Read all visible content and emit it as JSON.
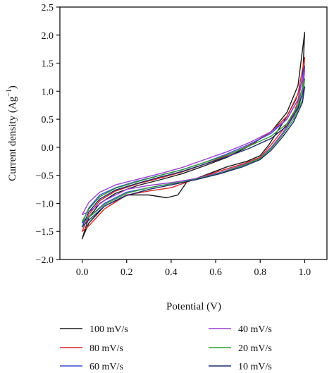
{
  "chart_data": {
    "type": "line",
    "xlabel": "Potential (V)",
    "ylabel": "Current density (Ag",
    "ylabel_sup": "−1",
    "ylabel_close": ")",
    "xlim": [
      -0.1,
      1.1
    ],
    "ylim": [
      -2.0,
      2.5
    ],
    "xticks": [
      "0.0",
      "0.2",
      "0.4",
      "0.6",
      "0.8",
      "1.0"
    ],
    "xtick_values": [
      0.0,
      0.2,
      0.4,
      0.6,
      0.8,
      1.0
    ],
    "yticks": [
      "−2.0",
      "−1.5",
      "−1.0",
      "−0.5",
      "0.0",
      "0.5",
      "1.0",
      "1.5",
      "2.0",
      "2.5"
    ],
    "ytick_values": [
      -2.0,
      -1.5,
      -1.0,
      -0.5,
      0.0,
      0.5,
      1.0,
      1.5,
      2.0,
      2.5
    ],
    "grid": false,
    "legend_position": "bottom",
    "series": [
      {
        "name": "100 mV/s",
        "color": "#1a1a1a",
        "forward": [
          [
            0.0,
            -1.63
          ],
          [
            0.03,
            -1.25
          ],
          [
            0.08,
            -1.0
          ],
          [
            0.15,
            -0.82
          ],
          [
            0.25,
            -0.68
          ],
          [
            0.35,
            -0.58
          ],
          [
            0.45,
            -0.47
          ],
          [
            0.55,
            -0.33
          ],
          [
            0.65,
            -0.18
          ],
          [
            0.75,
            0.02
          ],
          [
            0.85,
            0.28
          ],
          [
            0.92,
            0.62
          ],
          [
            0.97,
            1.1
          ],
          [
            1.0,
            2.05
          ]
        ],
        "reverse": [
          [
            1.0,
            2.05
          ],
          [
            0.99,
            1.2
          ],
          [
            0.96,
            0.85
          ],
          [
            0.92,
            0.55
          ],
          [
            0.88,
            0.3
          ],
          [
            0.84,
            0.05
          ],
          [
            0.8,
            -0.15
          ],
          [
            0.74,
            -0.25
          ],
          [
            0.65,
            -0.35
          ],
          [
            0.55,
            -0.5
          ],
          [
            0.47,
            -0.62
          ],
          [
            0.43,
            -0.85
          ],
          [
            0.38,
            -0.9
          ],
          [
            0.3,
            -0.85
          ],
          [
            0.2,
            -0.85
          ],
          [
            0.1,
            -1.05
          ],
          [
            0.03,
            -1.35
          ],
          [
            0.0,
            -1.63
          ]
        ]
      },
      {
        "name": "80 mV/s",
        "color": "#d62a2a",
        "forward": [
          [
            0.0,
            -1.5
          ],
          [
            0.03,
            -1.2
          ],
          [
            0.08,
            -0.95
          ],
          [
            0.15,
            -0.78
          ],
          [
            0.25,
            -0.65
          ],
          [
            0.35,
            -0.55
          ],
          [
            0.45,
            -0.44
          ],
          [
            0.55,
            -0.3
          ],
          [
            0.65,
            -0.15
          ],
          [
            0.75,
            0.03
          ],
          [
            0.85,
            0.28
          ],
          [
            0.92,
            0.55
          ],
          [
            0.97,
            0.95
          ],
          [
            1.0,
            1.6
          ]
        ],
        "reverse": [
          [
            1.0,
            1.6
          ],
          [
            0.99,
            1.05
          ],
          [
            0.95,
            0.6
          ],
          [
            0.9,
            0.3
          ],
          [
            0.85,
            0.05
          ],
          [
            0.8,
            -0.18
          ],
          [
            0.72,
            -0.3
          ],
          [
            0.62,
            -0.42
          ],
          [
            0.52,
            -0.55
          ],
          [
            0.45,
            -0.65
          ],
          [
            0.4,
            -0.72
          ],
          [
            0.3,
            -0.78
          ],
          [
            0.2,
            -0.85
          ],
          [
            0.1,
            -1.1
          ],
          [
            0.03,
            -1.4
          ],
          [
            0.0,
            -1.5
          ]
        ]
      },
      {
        "name": "60 mV/s",
        "color": "#3a4bd0",
        "forward": [
          [
            0.0,
            -1.35
          ],
          [
            0.03,
            -1.08
          ],
          [
            0.08,
            -0.85
          ],
          [
            0.15,
            -0.72
          ],
          [
            0.25,
            -0.6
          ],
          [
            0.35,
            -0.5
          ],
          [
            0.45,
            -0.4
          ],
          [
            0.55,
            -0.27
          ],
          [
            0.65,
            -0.12
          ],
          [
            0.75,
            0.05
          ],
          [
            0.85,
            0.25
          ],
          [
            0.92,
            0.5
          ],
          [
            0.97,
            0.85
          ],
          [
            1.0,
            1.45
          ]
        ],
        "reverse": [
          [
            1.0,
            1.45
          ],
          [
            0.99,
            0.95
          ],
          [
            0.95,
            0.55
          ],
          [
            0.9,
            0.25
          ],
          [
            0.85,
            0.0
          ],
          [
            0.8,
            -0.2
          ],
          [
            0.72,
            -0.32
          ],
          [
            0.62,
            -0.45
          ],
          [
            0.52,
            -0.55
          ],
          [
            0.45,
            -0.62
          ],
          [
            0.4,
            -0.65
          ],
          [
            0.3,
            -0.72
          ],
          [
            0.2,
            -0.8
          ],
          [
            0.1,
            -1.0
          ],
          [
            0.03,
            -1.25
          ],
          [
            0.0,
            -1.35
          ]
        ]
      },
      {
        "name": "40 mV/s",
        "color": "#9a3fd0",
        "forward": [
          [
            0.0,
            -1.2
          ],
          [
            0.03,
            -0.98
          ],
          [
            0.08,
            -0.8
          ],
          [
            0.15,
            -0.67
          ],
          [
            0.25,
            -0.57
          ],
          [
            0.35,
            -0.47
          ],
          [
            0.45,
            -0.36
          ],
          [
            0.55,
            -0.22
          ],
          [
            0.65,
            -0.08
          ],
          [
            0.75,
            0.08
          ],
          [
            0.85,
            0.28
          ],
          [
            0.92,
            0.5
          ],
          [
            0.97,
            0.85
          ],
          [
            1.0,
            1.38
          ]
        ],
        "reverse": [
          [
            1.0,
            1.38
          ],
          [
            0.99,
            0.95
          ],
          [
            0.95,
            0.55
          ],
          [
            0.9,
            0.25
          ],
          [
            0.85,
            0.0
          ],
          [
            0.8,
            -0.2
          ],
          [
            0.72,
            -0.32
          ],
          [
            0.62,
            -0.45
          ],
          [
            0.52,
            -0.55
          ],
          [
            0.45,
            -0.6
          ],
          [
            0.4,
            -0.63
          ],
          [
            0.3,
            -0.68
          ],
          [
            0.2,
            -0.75
          ],
          [
            0.1,
            -0.95
          ],
          [
            0.03,
            -1.15
          ],
          [
            0.0,
            -1.2
          ]
        ]
      },
      {
        "name": "20 mV/s",
        "color": "#2f9a3a",
        "forward": [
          [
            0.0,
            -1.32
          ],
          [
            0.03,
            -1.1
          ],
          [
            0.08,
            -0.88
          ],
          [
            0.15,
            -0.73
          ],
          [
            0.25,
            -0.61
          ],
          [
            0.35,
            -0.5
          ],
          [
            0.45,
            -0.4
          ],
          [
            0.55,
            -0.27
          ],
          [
            0.65,
            -0.14
          ],
          [
            0.75,
            0.02
          ],
          [
            0.85,
            0.2
          ],
          [
            0.92,
            0.42
          ],
          [
            0.97,
            0.75
          ],
          [
            1.0,
            1.22
          ]
        ],
        "reverse": [
          [
            1.0,
            1.22
          ],
          [
            0.99,
            0.85
          ],
          [
            0.95,
            0.5
          ],
          [
            0.9,
            0.22
          ],
          [
            0.85,
            -0.02
          ],
          [
            0.8,
            -0.2
          ],
          [
            0.72,
            -0.33
          ],
          [
            0.62,
            -0.46
          ],
          [
            0.52,
            -0.56
          ],
          [
            0.45,
            -0.62
          ],
          [
            0.4,
            -0.65
          ],
          [
            0.3,
            -0.72
          ],
          [
            0.2,
            -0.82
          ],
          [
            0.1,
            -1.02
          ],
          [
            0.03,
            -1.25
          ],
          [
            0.0,
            -1.32
          ]
        ]
      },
      {
        "name": "10 mV/s",
        "color": "#1f2a6e",
        "forward": [
          [
            0.0,
            -1.42
          ],
          [
            0.03,
            -1.15
          ],
          [
            0.08,
            -0.92
          ],
          [
            0.15,
            -0.76
          ],
          [
            0.25,
            -0.64
          ],
          [
            0.35,
            -0.53
          ],
          [
            0.45,
            -0.43
          ],
          [
            0.55,
            -0.3
          ],
          [
            0.65,
            -0.17
          ],
          [
            0.75,
            -0.02
          ],
          [
            0.85,
            0.16
          ],
          [
            0.92,
            0.38
          ],
          [
            0.97,
            0.7
          ],
          [
            1.0,
            1.08
          ]
        ],
        "reverse": [
          [
            1.0,
            1.08
          ],
          [
            0.99,
            0.8
          ],
          [
            0.95,
            0.45
          ],
          [
            0.9,
            0.18
          ],
          [
            0.85,
            -0.05
          ],
          [
            0.8,
            -0.22
          ],
          [
            0.72,
            -0.35
          ],
          [
            0.62,
            -0.47
          ],
          [
            0.52,
            -0.57
          ],
          [
            0.45,
            -0.63
          ],
          [
            0.4,
            -0.67
          ],
          [
            0.3,
            -0.75
          ],
          [
            0.2,
            -0.86
          ],
          [
            0.1,
            -1.05
          ],
          [
            0.03,
            -1.3
          ],
          [
            0.0,
            -1.42
          ]
        ]
      }
    ]
  }
}
